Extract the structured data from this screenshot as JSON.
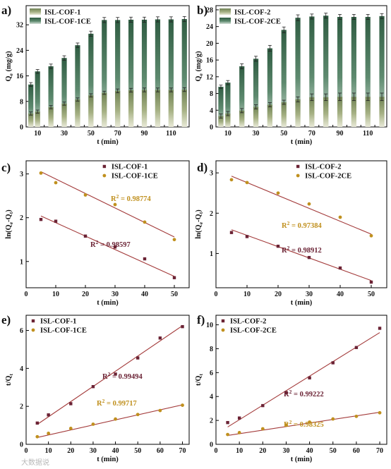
{
  "colors": {
    "cof1_bar": "#8f9e6c",
    "cof1ce_bar": "#3d6b52",
    "cof1_dark": "#6b2335",
    "cof1ce_gold": "#c0901e",
    "fit_line": "#a33a3a",
    "axis": "#000000"
  },
  "watermark": "大数据说",
  "chart_data": [
    {
      "id": "a",
      "panel_label": "a)",
      "type": "bar",
      "xlabel": "t (min)",
      "ylabel": "Qe (mg/g)",
      "ylim": [
        0,
        38
      ],
      "yticks": [
        0,
        8,
        16,
        24,
        32
      ],
      "xtick_labels": [
        "10",
        "30",
        "50",
        "70",
        "90",
        "110"
      ],
      "categories": [
        5,
        10,
        15,
        20,
        25,
        30,
        35,
        40,
        45,
        50,
        55,
        60,
        65,
        70,
        75,
        80,
        85,
        90,
        95,
        100,
        105,
        110,
        115,
        120
      ],
      "x": [
        5,
        10,
        20,
        30,
        40,
        50,
        60,
        70,
        80,
        90,
        100,
        110,
        120
      ],
      "legend_position": "top-left",
      "series": [
        {
          "name": "ISL-COF-1",
          "values": [
            4.2,
            4.8,
            6.2,
            7.3,
            8.6,
            9.9,
            10.7,
            11.3,
            11.5,
            11.6,
            11.6,
            11.6,
            11.7
          ],
          "errors": [
            0.5,
            0.5,
            0.5,
            0.5,
            0.5,
            0.5,
            0.5,
            0.6,
            0.6,
            0.6,
            0.6,
            0.6,
            0.6
          ]
        },
        {
          "name": "ISL-COF-1CE",
          "values": [
            13.3,
            17.4,
            19.0,
            21.6,
            25.6,
            29.2,
            33.5,
            33.5,
            33.6,
            33.6,
            33.7,
            33.7,
            33.8
          ],
          "errors": [
            0.6,
            0.6,
            0.7,
            0.7,
            0.7,
            0.8,
            0.8,
            0.8,
            0.8,
            0.8,
            0.8,
            0.8,
            0.8
          ]
        }
      ]
    },
    {
      "id": "b",
      "panel_label": "b)",
      "type": "bar",
      "xlabel": "t (min)",
      "ylabel": "Qe (mg/g)",
      "ylim": [
        0,
        29
      ],
      "yticks": [
        0,
        4,
        8,
        12,
        16,
        20,
        24,
        28
      ],
      "xtick_labels": [
        "10",
        "30",
        "50",
        "70",
        "90",
        "110"
      ],
      "categories": [
        5,
        10,
        15,
        20,
        25,
        30,
        35,
        40,
        45,
        50,
        55,
        60,
        65,
        70,
        75,
        80,
        85,
        90,
        95,
        100,
        105,
        110,
        115,
        120
      ],
      "x": [
        5,
        10,
        20,
        30,
        40,
        50,
        60,
        70,
        80,
        90,
        100,
        110,
        120
      ],
      "legend_position": "top-left",
      "series": [
        {
          "name": "ISL-COF-2",
          "values": [
            2.6,
            3.2,
            3.9,
            4.8,
            5.3,
            5.9,
            6.6,
            7.1,
            7.1,
            7.2,
            7.2,
            7.2,
            7.2
          ],
          "errors": [
            0.5,
            0.5,
            0.5,
            0.5,
            0.5,
            0.5,
            0.6,
            0.8,
            0.8,
            0.9,
            0.9,
            0.9,
            0.9
          ]
        },
        {
          "name": "ISL-COF-2CE",
          "values": [
            9.6,
            10.6,
            14.5,
            16.3,
            18.8,
            23.2,
            26.1,
            26.4,
            26.6,
            26.3,
            26.3,
            26.3,
            26.5
          ],
          "errors": [
            0.4,
            0.5,
            0.6,
            0.6,
            0.7,
            0.7,
            0.7,
            0.6,
            0.6,
            0.6,
            0.6,
            0.6,
            0.6
          ]
        }
      ]
    },
    {
      "id": "c",
      "panel_label": "c)",
      "type": "scatter",
      "xlabel": "t (min)",
      "ylabel": "ln(Qe-Qt)",
      "xlim": [
        0,
        55
      ],
      "ylim": [
        0.4,
        3.3
      ],
      "xticks": [
        0,
        10,
        20,
        30,
        40,
        50
      ],
      "yticks": [
        1,
        2,
        3
      ],
      "legend_position": "top-right",
      "series": [
        {
          "name": "ISL-COF-1",
          "x": [
            5,
            10,
            20,
            30,
            40,
            50
          ],
          "y": [
            1.96,
            1.92,
            1.58,
            1.33,
            1.06,
            0.63
          ],
          "fit": [
            [
              5,
              2.04
            ],
            [
              50,
              0.66
            ]
          ],
          "r2": "R² = 0.98597"
        },
        {
          "name": "ISL-COF-1CE",
          "x": [
            5,
            10,
            20,
            30,
            40,
            50
          ],
          "y": [
            3.02,
            2.8,
            2.52,
            2.3,
            1.9,
            1.5
          ],
          "fit": [
            [
              5,
              3.05
            ],
            [
              50,
              1.56
            ]
          ],
          "r2": "R² = 0.98774"
        }
      ]
    },
    {
      "id": "d",
      "panel_label": "d)",
      "type": "scatter",
      "xlabel": "t (min)",
      "ylabel": "ln(Qe-Qt)",
      "xlim": [
        0,
        55
      ],
      "ylim": [
        0.15,
        3.3
      ],
      "xticks": [
        0,
        10,
        20,
        30,
        40,
        50
      ],
      "yticks": [
        1,
        2,
        3
      ],
      "legend_position": "top-right",
      "series": [
        {
          "name": "ISL-COF-2",
          "x": [
            5,
            10,
            20,
            30,
            40,
            50
          ],
          "y": [
            1.52,
            1.42,
            1.18,
            0.9,
            0.64,
            0.29
          ],
          "fit": [
            [
              5,
              1.59
            ],
            [
              50,
              0.33
            ]
          ],
          "r2": "R² = 0.98912"
        },
        {
          "name": "ISL-COF-2CE",
          "x": [
            5,
            10,
            20,
            30,
            40,
            50
          ],
          "y": [
            2.83,
            2.76,
            2.5,
            2.23,
            1.9,
            1.44
          ],
          "fit": [
            [
              5,
              2.92
            ],
            [
              50,
              1.48
            ]
          ],
          "r2": "R² = 0.97384"
        }
      ]
    },
    {
      "id": "e",
      "panel_label": "e)",
      "type": "scatter",
      "xlabel": "t (min)",
      "ylabel": "t/Qt",
      "xlim": [
        0,
        73
      ],
      "ylim": [
        0,
        6.8
      ],
      "xticks": [
        0,
        10,
        20,
        30,
        40,
        50,
        60,
        70
      ],
      "yticks": [
        0,
        2,
        4,
        6
      ],
      "legend_position": "top-left",
      "series": [
        {
          "name": "ISL-COF-1",
          "x": [
            5,
            10,
            20,
            30,
            40,
            50,
            60,
            70
          ],
          "y": [
            1.12,
            1.55,
            2.14,
            3.04,
            3.7,
            4.55,
            5.6,
            6.2
          ],
          "fit": [
            [
              5,
              1.05
            ],
            [
              70,
              6.25
            ]
          ],
          "r2": "R² = 0.99494"
        },
        {
          "name": "ISL-COF-1CE",
          "x": [
            5,
            10,
            20,
            30,
            40,
            50,
            60,
            70
          ],
          "y": [
            0.4,
            0.58,
            0.84,
            1.06,
            1.33,
            1.57,
            1.78,
            2.06
          ],
          "fit": [
            [
              5,
              0.36
            ],
            [
              70,
              2.08
            ]
          ],
          "r2": "R² = 0.99717"
        }
      ]
    },
    {
      "id": "f",
      "panel_label": "f)",
      "type": "scatter",
      "xlabel": "t (min)",
      "ylabel": "t/Qt",
      "xlim": [
        0,
        73
      ],
      "ylim": [
        0,
        10.8
      ],
      "xticks": [
        0,
        10,
        20,
        30,
        40,
        50,
        60,
        70
      ],
      "yticks": [
        0,
        2,
        4,
        6,
        8,
        10
      ],
      "legend_position": "top-left",
      "series": [
        {
          "name": "ISL-COF-2",
          "x": [
            5,
            10,
            20,
            30,
            40,
            50,
            60,
            70
          ],
          "y": [
            1.82,
            2.2,
            3.24,
            4.33,
            5.56,
            6.82,
            8.1,
            9.71
          ],
          "fit": [
            [
              5,
              1.45
            ],
            [
              70,
              9.35
            ]
          ],
          "r2": "R² = 0.99222"
        },
        {
          "name": "ISL-COF-2CE",
          "x": [
            5,
            10,
            20,
            30,
            40,
            50,
            60,
            70
          ],
          "y": [
            0.82,
            0.98,
            1.3,
            1.62,
            1.86,
            2.12,
            2.34,
            2.64
          ],
          "fit": [
            [
              5,
              0.74
            ],
            [
              70,
              2.68
            ]
          ],
          "r2": "R² = 0.98325"
        }
      ]
    }
  ]
}
